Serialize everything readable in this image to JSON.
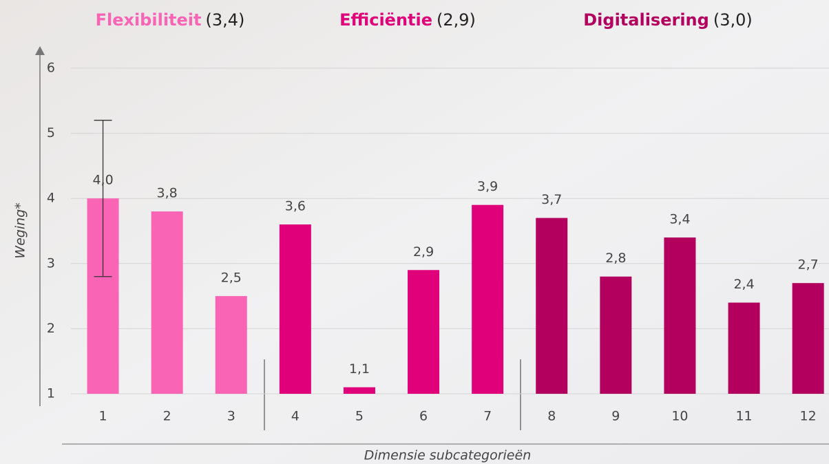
{
  "chart_data": {
    "type": "bar",
    "groups": {
      "names": [
        "Flexibiliteit",
        "Efficiëntie",
        "Digitalisering"
      ],
      "values": [
        3.4,
        2.9,
        3.0
      ],
      "value_labels": [
        "(3,4)",
        "(2,9)",
        "(3,0)"
      ],
      "colors": [
        "#f964b4",
        "#e0007a",
        "#b3005e"
      ]
    },
    "categories": [
      "1",
      "2",
      "3",
      "4",
      "5",
      "6",
      "7",
      "8",
      "9",
      "10",
      "11",
      "12"
    ],
    "values": [
      4.0,
      3.8,
      2.5,
      3.6,
      1.1,
      2.9,
      3.9,
      3.7,
      2.8,
      3.4,
      2.4,
      2.7
    ],
    "value_labels": [
      "4,0",
      "3,8",
      "2,5",
      "3,6",
      "1,1",
      "2,9",
      "3,9",
      "3,7",
      "2,8",
      "3,4",
      "2,4",
      "2,7"
    ],
    "colors": [
      "#f964b4",
      "#f964b4",
      "#f964b4",
      "#e0007a",
      "#e0007a",
      "#e0007a",
      "#e0007a",
      "#b3005e",
      "#b3005e",
      "#b3005e",
      "#b3005e",
      "#b3005e"
    ],
    "errors": [
      1.2,
      null,
      null,
      null,
      null,
      null,
      null,
      null,
      null,
      null,
      null,
      null
    ],
    "ylim": [
      1,
      6
    ],
    "yticks": [
      1,
      2,
      3,
      4,
      5,
      6
    ],
    "grid": true,
    "y_label": "Weging*",
    "x_label": "Dimensie subcategorieën"
  }
}
